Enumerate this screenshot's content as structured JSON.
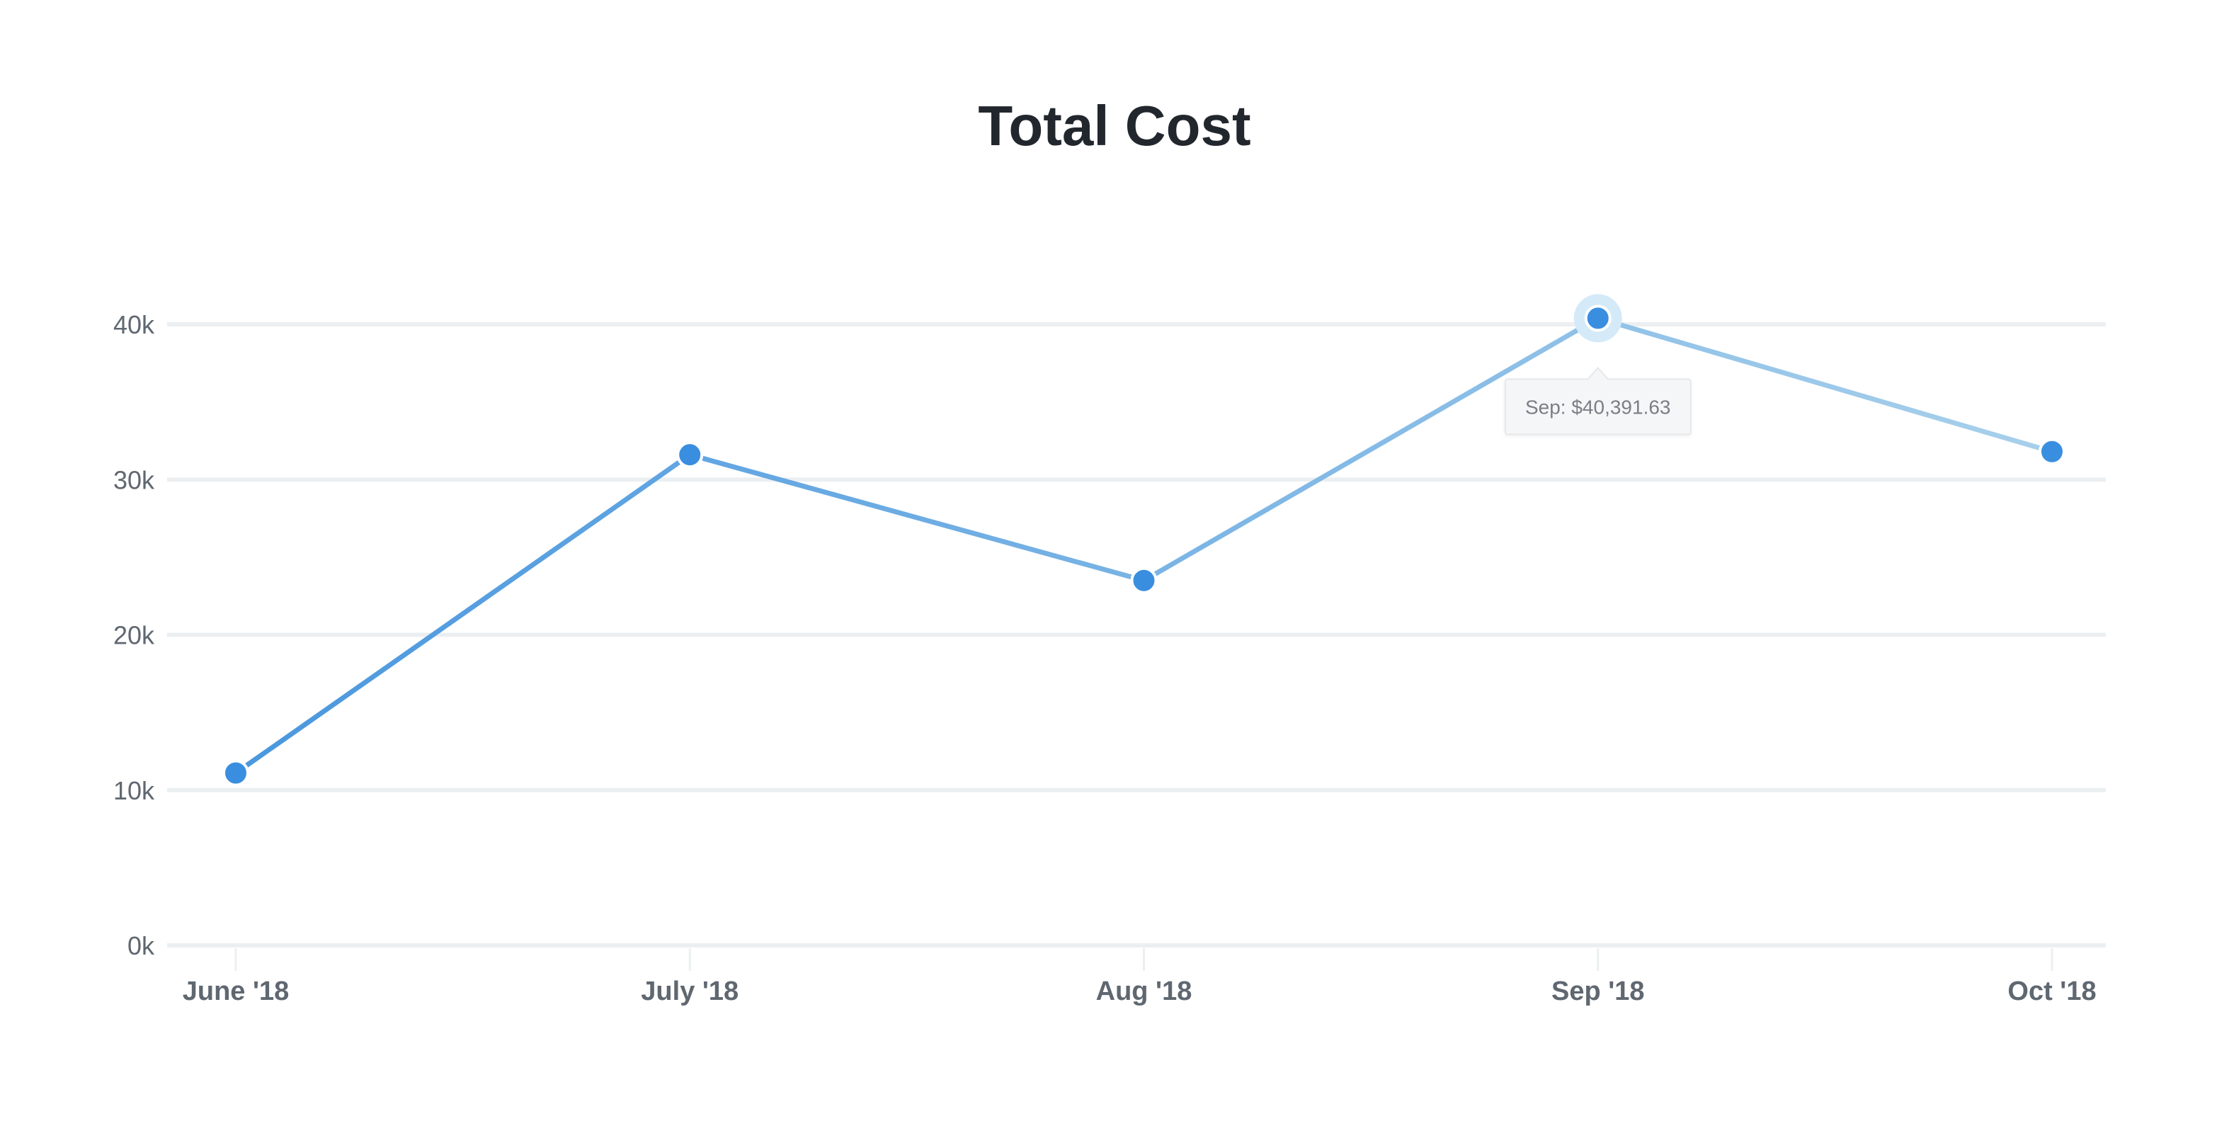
{
  "chart_data": {
    "type": "line",
    "title": "Total Cost",
    "categories": [
      "June '18",
      "July '18",
      "Aug '18",
      "Sep '18",
      "Oct '18"
    ],
    "series": [
      {
        "values": [
          11100,
          31600,
          23500,
          40391.63,
          31800
        ]
      }
    ],
    "ylim": [
      0,
      40000
    ],
    "y_ticks": [
      0,
      10000,
      20000,
      30000,
      40000
    ],
    "y_tick_labels": [
      "0k",
      "10k",
      "20k",
      "30k",
      "40k"
    ],
    "grid": true,
    "legend": "none",
    "highlight": {
      "index": 3,
      "tooltip": "Sep: $40,391.63"
    },
    "colors": {
      "point": "#3a8ee0",
      "line_start": "#4a97de",
      "line_end": "#a8d0eb",
      "grid": "#eceff1",
      "highlight_halo": "#d4eaf8",
      "tooltip_bg": "#f5f6f7",
      "tooltip_border": "#e6e8ea"
    }
  }
}
